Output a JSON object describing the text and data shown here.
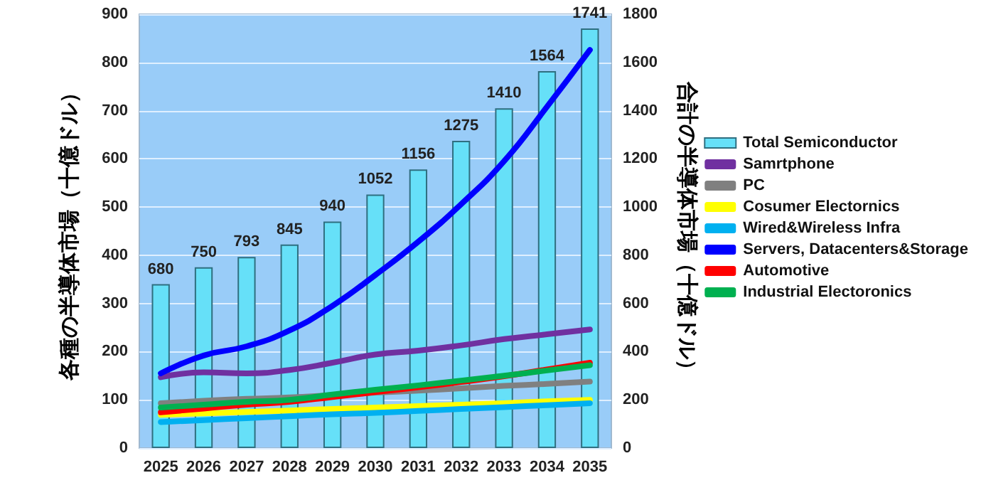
{
  "chart_data": {
    "type": "line",
    "categories": [
      "2025",
      "2026",
      "2027",
      "2028",
      "2029",
      "2030",
      "2031",
      "2032",
      "2033",
      "2034",
      "2035"
    ],
    "ylabel": "各種の半導体市場（十億ドル）",
    "y2label": "合計の半導体市場（十億ドル）",
    "ylim": [
      0,
      900
    ],
    "yticks": [
      0,
      100,
      200,
      300,
      400,
      500,
      600,
      700,
      800,
      900
    ],
    "y2lim": [
      0,
      1800
    ],
    "y2ticks": [
      0,
      200,
      400,
      600,
      800,
      1000,
      1200,
      1400,
      1600,
      1800
    ],
    "grid": "y",
    "legend": "right",
    "marker": "none",
    "line_style": "solid",
    "series": [
      {
        "name": "Total Semiconductor",
        "type": "bar",
        "axis": "y2",
        "color": "#66e0f8",
        "values": [
          680,
          750,
          793,
          845,
          940,
          1052,
          1156,
          1275,
          1410,
          1564,
          1741
        ],
        "data_labels": true
      },
      {
        "name": "Samrtphone",
        "color": "#7030a0",
        "values": [
          147,
          157,
          155,
          162,
          177,
          194,
          202,
          213,
          226,
          236,
          246
        ]
      },
      {
        "name": "PC",
        "color": "#808080",
        "values": [
          93,
          98,
          102,
          105,
          110,
          115,
          119,
          124,
          129,
          133,
          138
        ]
      },
      {
        "name": "Cosumer Electornics",
        "color": "#ffff00",
        "values": [
          69,
          72,
          75,
          78,
          81,
          84,
          87,
          90,
          93,
          97,
          100
        ]
      },
      {
        "name": "Wired&Wireless Infra",
        "color": "#00b0f0",
        "values": [
          54,
          58,
          62,
          66,
          70,
          73,
          77,
          81,
          85,
          89,
          93
        ]
      },
      {
        "name": "Servers, Datacenters&Storage",
        "color": "#0000ff",
        "values": [
          155,
          192,
          211,
          244,
          295,
          359,
          428,
          506,
          595,
          708,
          826
        ]
      },
      {
        "name": "Automotive",
        "color": "#ff0000",
        "values": [
          74,
          82,
          90,
          96,
          106,
          116,
          126,
          137,
          149,
          163,
          177
        ]
      },
      {
        "name": "Industrial Electoronics",
        "color": "#00b050",
        "values": [
          84,
          90,
          96,
          100,
          111,
          121,
          130,
          140,
          150,
          161,
          172
        ]
      }
    ]
  }
}
